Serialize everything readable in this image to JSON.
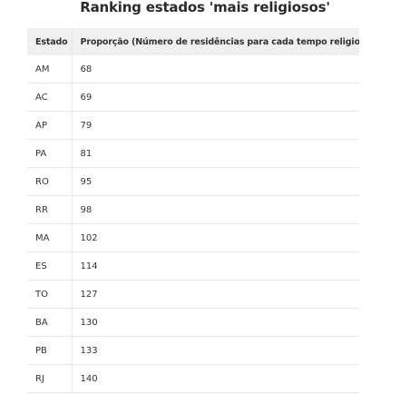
{
  "title": "Ranking estados 'mais religiosos'",
  "table": {
    "headers": [
      "Estado",
      "Proporção (Número de residências para cada tempo religioso)"
    ],
    "rows": [
      [
        "AM",
        "68"
      ],
      [
        "AC",
        "69"
      ],
      [
        "AP",
        "79"
      ],
      [
        "PA",
        "81"
      ],
      [
        "RO",
        "95"
      ],
      [
        "RR",
        "98"
      ],
      [
        "MA",
        "102"
      ],
      [
        "ES",
        "114"
      ],
      [
        "TO",
        "127"
      ],
      [
        "BA",
        "130"
      ],
      [
        "PB",
        "133"
      ],
      [
        "RJ",
        "140"
      ]
    ]
  }
}
